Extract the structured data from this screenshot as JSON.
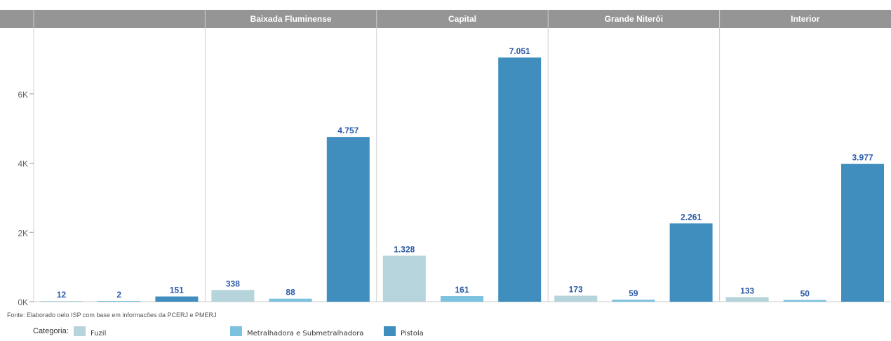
{
  "chart_data": {
    "type": "bar",
    "panels": [
      "",
      "Baixada Fluminense",
      "Capital",
      "Grande Niterói",
      "Interior"
    ],
    "categories": [
      "Fuzil",
      "Metralhadora e Submetralhadora",
      "Pistola"
    ],
    "series": [
      {
        "panel": "",
        "values": [
          12,
          2,
          151
        ],
        "labels": [
          "12",
          "2",
          "151"
        ]
      },
      {
        "panel": "Baixada Fluminense",
        "values": [
          338,
          88,
          4757
        ],
        "labels": [
          "338",
          "88",
          "4.757"
        ]
      },
      {
        "panel": "Capital",
        "values": [
          1328,
          161,
          7051
        ],
        "labels": [
          "1.328",
          "161",
          "7.051"
        ]
      },
      {
        "panel": "Grande Niterói",
        "values": [
          173,
          59,
          2261
        ],
        "labels": [
          "173",
          "59",
          "2.261"
        ]
      },
      {
        "panel": "Interior",
        "values": [
          133,
          50,
          3977
        ],
        "labels": [
          "133",
          "50",
          "3.977"
        ]
      }
    ],
    "y_ticks": [
      0,
      2000,
      4000,
      6000
    ],
    "y_tick_labels": [
      "0K",
      "2K",
      "4K",
      "6K"
    ],
    "ylim": [
      0,
      7900
    ],
    "colors": {
      "Fuzil": "#b6d4db",
      "Metralhadora e Submetralhadora": "#7cc1de",
      "Pistola": "#3f8ebe"
    },
    "label_color": "#2a5aa8",
    "header_color": "#959595"
  },
  "source": "Fonte: Elaborado pelo ISP com base em informações da PCERJ e PMERJ",
  "legend": {
    "title": "Categoria:",
    "items": [
      {
        "label": "Fuzil",
        "color": "#b6d4db"
      },
      {
        "label": "Metralhadora e Submetralhadora",
        "color": "#7cc1de"
      },
      {
        "label": "Pistola",
        "color": "#3f8ebe"
      }
    ]
  }
}
